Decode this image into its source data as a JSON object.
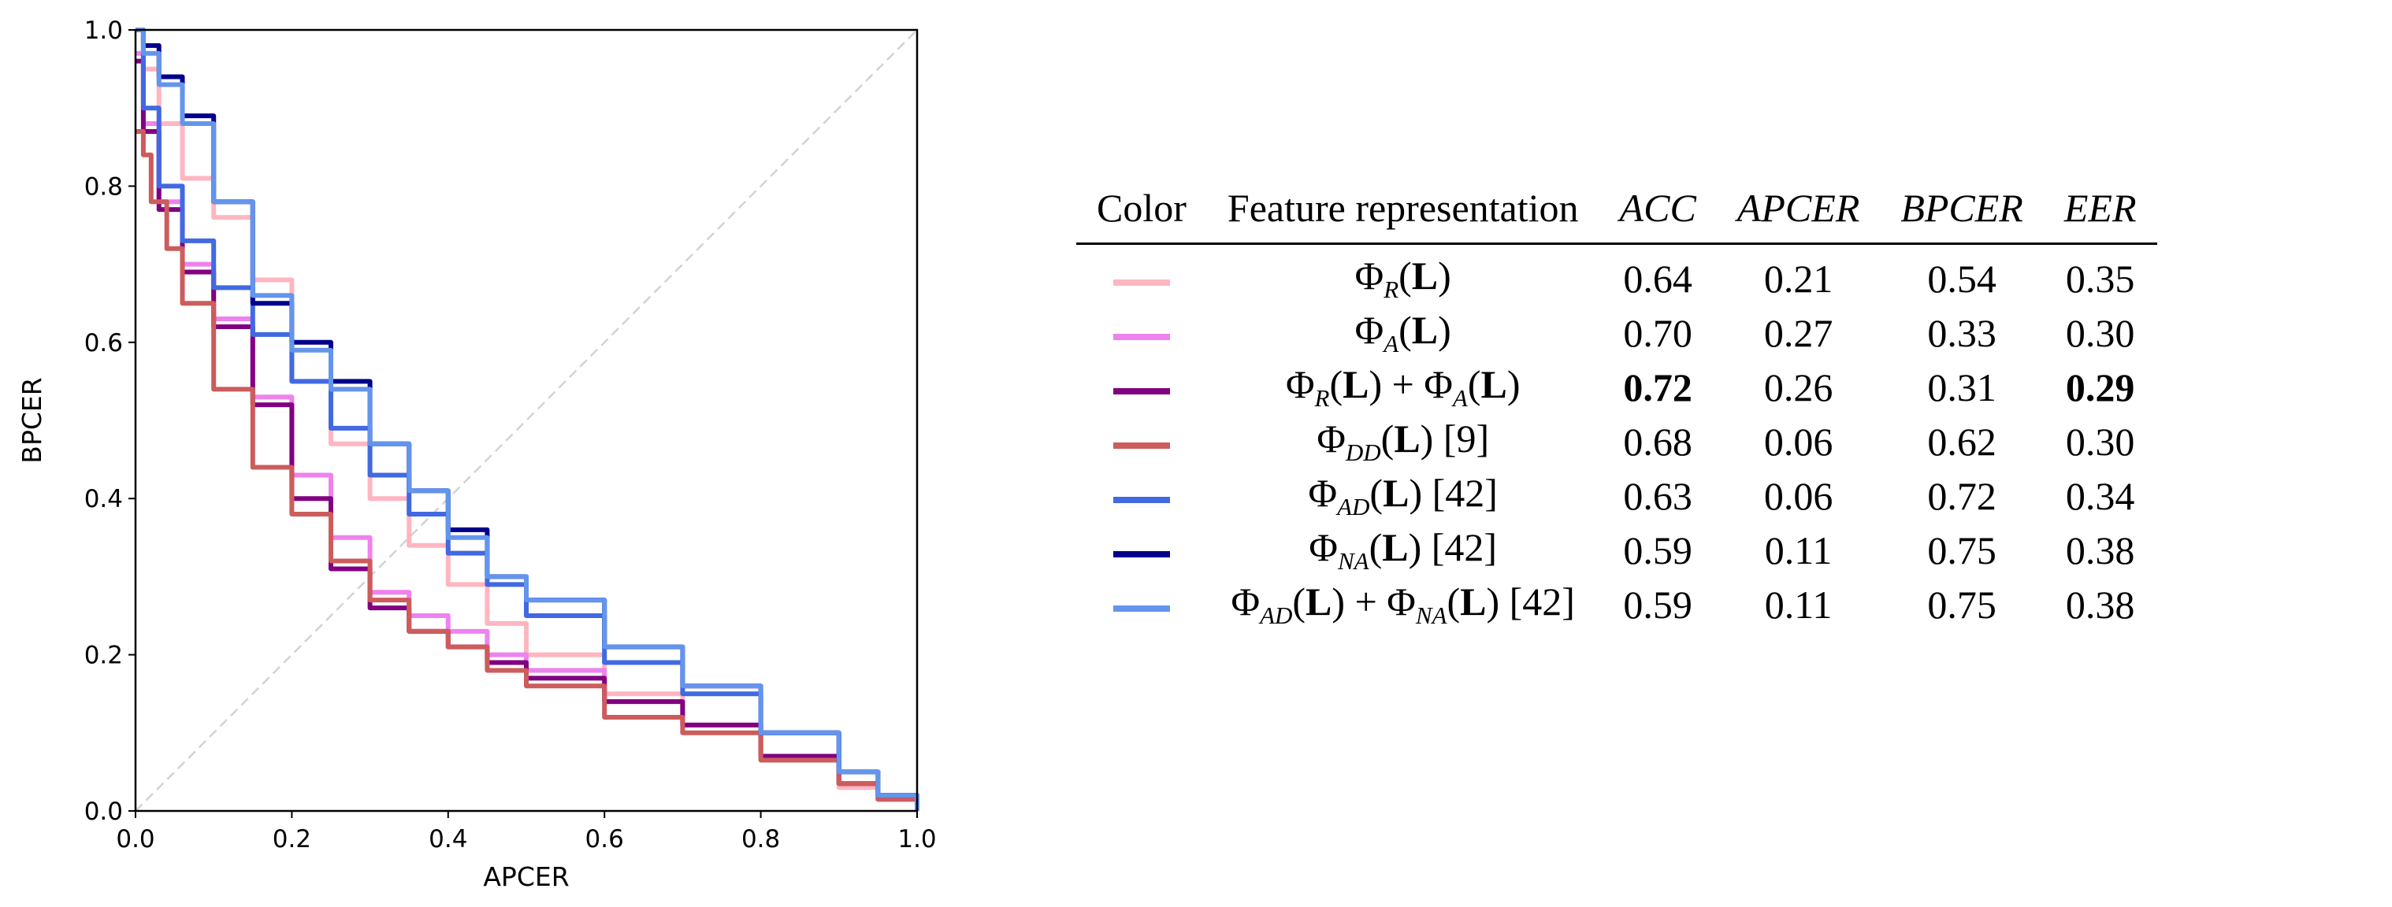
{
  "chart_data": {
    "type": "line",
    "title": "",
    "xlabel": "APCER",
    "ylabel": "BPCER",
    "xlim": [
      0.0,
      1.0
    ],
    "ylim": [
      0.0,
      1.0
    ],
    "xticks": [
      "0.0",
      "0.2",
      "0.4",
      "0.6",
      "0.8",
      "1.0"
    ],
    "yticks": [
      "0.0",
      "0.2",
      "0.4",
      "0.6",
      "0.8",
      "1.0"
    ],
    "grid": false,
    "reference_line": {
      "x": [
        0,
        1
      ],
      "y": [
        0,
        1
      ],
      "color": "#d3d3d3",
      "style": "dashed"
    },
    "series": [
      {
        "color": "#ffb6c1",
        "x": [
          0,
          0.01,
          0.03,
          0.06,
          0.1,
          0.15,
          0.2,
          0.25,
          0.3,
          0.35,
          0.4,
          0.45,
          0.5,
          0.6,
          0.7,
          0.8,
          0.9,
          0.95,
          1.0
        ],
        "y": [
          1.0,
          0.95,
          0.88,
          0.81,
          0.76,
          0.68,
          0.55,
          0.47,
          0.4,
          0.34,
          0.29,
          0.24,
          0.2,
          0.15,
          0.11,
          0.07,
          0.03,
          0.015,
          0.0
        ]
      },
      {
        "color": "#ee82ee",
        "x": [
          0,
          0.01,
          0.03,
          0.06,
          0.1,
          0.15,
          0.2,
          0.25,
          0.3,
          0.35,
          0.4,
          0.45,
          0.5,
          0.6,
          0.7,
          0.8,
          0.9,
          0.95,
          1.0
        ],
        "y": [
          0.97,
          0.88,
          0.78,
          0.7,
          0.63,
          0.53,
          0.43,
          0.35,
          0.28,
          0.25,
          0.23,
          0.2,
          0.18,
          0.14,
          0.11,
          0.07,
          0.035,
          0.015,
          0.0
        ]
      },
      {
        "color": "#800080",
        "x": [
          0,
          0.01,
          0.03,
          0.06,
          0.1,
          0.15,
          0.2,
          0.25,
          0.3,
          0.35,
          0.4,
          0.45,
          0.5,
          0.6,
          0.7,
          0.8,
          0.9,
          0.95,
          1.0
        ],
        "y": [
          0.96,
          0.87,
          0.77,
          0.69,
          0.62,
          0.52,
          0.4,
          0.31,
          0.26,
          0.23,
          0.21,
          0.19,
          0.17,
          0.14,
          0.11,
          0.07,
          0.035,
          0.015,
          0.0
        ]
      },
      {
        "color": "#cd5c5c",
        "x": [
          0,
          0.01,
          0.02,
          0.04,
          0.06,
          0.1,
          0.15,
          0.2,
          0.25,
          0.3,
          0.35,
          0.4,
          0.45,
          0.5,
          0.6,
          0.7,
          0.8,
          0.9,
          0.95,
          1.0
        ],
        "y": [
          0.87,
          0.84,
          0.78,
          0.72,
          0.65,
          0.54,
          0.44,
          0.38,
          0.32,
          0.27,
          0.23,
          0.21,
          0.18,
          0.16,
          0.12,
          0.1,
          0.065,
          0.035,
          0.015,
          0.0
        ]
      },
      {
        "color": "#4169e1",
        "x": [
          0,
          0.01,
          0.03,
          0.06,
          0.1,
          0.15,
          0.2,
          0.25,
          0.3,
          0.35,
          0.4,
          0.45,
          0.5,
          0.6,
          0.7,
          0.8,
          0.9,
          0.95,
          1.0
        ],
        "y": [
          1.0,
          0.9,
          0.8,
          0.73,
          0.67,
          0.61,
          0.55,
          0.49,
          0.43,
          0.38,
          0.33,
          0.29,
          0.25,
          0.19,
          0.15,
          0.1,
          0.05,
          0.02,
          0.0
        ]
      },
      {
        "color": "#00008b",
        "x": [
          0,
          0.01,
          0.03,
          0.06,
          0.1,
          0.15,
          0.2,
          0.25,
          0.3,
          0.35,
          0.4,
          0.45,
          0.5,
          0.6,
          0.7,
          0.8,
          0.9,
          0.95,
          1.0
        ],
        "y": [
          1.0,
          0.98,
          0.94,
          0.89,
          0.78,
          0.65,
          0.6,
          0.55,
          0.47,
          0.41,
          0.36,
          0.3,
          0.27,
          0.21,
          0.16,
          0.1,
          0.05,
          0.02,
          0.0
        ]
      },
      {
        "color": "#6495ed",
        "x": [
          0,
          0.01,
          0.03,
          0.06,
          0.1,
          0.15,
          0.2,
          0.25,
          0.3,
          0.35,
          0.4,
          0.45,
          0.5,
          0.6,
          0.7,
          0.8,
          0.9,
          0.95,
          1.0
        ],
        "y": [
          1.0,
          0.97,
          0.93,
          0.88,
          0.78,
          0.66,
          0.59,
          0.54,
          0.47,
          0.41,
          0.35,
          0.3,
          0.27,
          0.21,
          0.16,
          0.1,
          0.05,
          0.02,
          0.0
        ]
      }
    ]
  },
  "table": {
    "headers": [
      "Color",
      "Feature representation",
      "ACC",
      "APCER",
      "BPCER",
      "EER"
    ],
    "rows": [
      {
        "color": "#ffb6c1",
        "acc": "0.64",
        "apcer": "0.21",
        "bpcer": "0.54",
        "eer": "0.35"
      },
      {
        "color": "#ee82ee",
        "acc": "0.70",
        "apcer": "0.27",
        "bpcer": "0.33",
        "eer": "0.30"
      },
      {
        "color": "#800080",
        "acc": "0.72",
        "apcer": "0.26",
        "bpcer": "0.31",
        "eer": "0.29"
      },
      {
        "color": "#cd5c5c",
        "acc": "0.68",
        "apcer": "0.06",
        "bpcer": "0.62",
        "eer": "0.30"
      },
      {
        "color": "#4169e1",
        "acc": "0.63",
        "apcer": "0.06",
        "bpcer": "0.72",
        "eer": "0.34"
      },
      {
        "color": "#00008b",
        "acc": "0.59",
        "apcer": "0.11",
        "bpcer": "0.75",
        "eer": "0.38"
      },
      {
        "color": "#6495ed",
        "acc": "0.59",
        "apcer": "0.11",
        "bpcer": "0.75",
        "eer": "0.38"
      }
    ],
    "features": {
      "phi": "Φ",
      "L": "L",
      "plus": " + ",
      "sub_r": "R",
      "sub_a": "A",
      "sub_dd": "DD",
      "sub_ad": "AD",
      "sub_na": "NA",
      "cite_9": " [9]",
      "cite_42": " [42]"
    }
  }
}
